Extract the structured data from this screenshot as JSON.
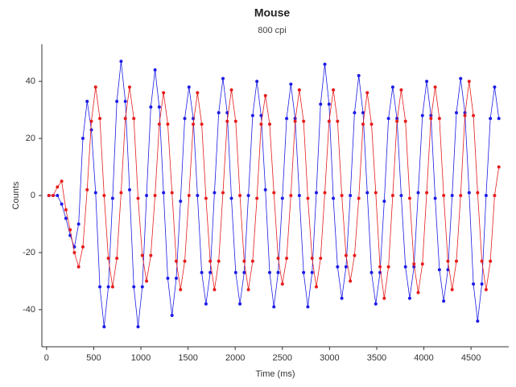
{
  "chart_data": {
    "type": "line",
    "title": "Mouse",
    "subtitle": "800 cpi",
    "x_label": "Time (ms)",
    "y_label": "Counts",
    "xlim": [
      -50,
      4900
    ],
    "ylim": [
      -53,
      53
    ],
    "xticks": [
      0,
      500,
      1000,
      1500,
      2000,
      2500,
      3000,
      3500,
      4000,
      4500
    ],
    "yticks": [
      -40,
      -20,
      0,
      20,
      40
    ],
    "x": [
      25,
      70,
      115,
      160,
      205,
      250,
      295,
      340,
      385,
      430,
      475,
      520,
      565,
      610,
      655,
      700,
      745,
      790,
      835,
      880,
      925,
      970,
      1015,
      1060,
      1105,
      1150,
      1195,
      1240,
      1285,
      1330,
      1375,
      1420,
      1465,
      1510,
      1555,
      1600,
      1645,
      1690,
      1735,
      1780,
      1825,
      1870,
      1915,
      1960,
      2005,
      2050,
      2095,
      2140,
      2185,
      2230,
      2275,
      2320,
      2365,
      2410,
      2455,
      2500,
      2545,
      2590,
      2635,
      2680,
      2725,
      2770,
      2815,
      2860,
      2905,
      2950,
      2995,
      3040,
      3085,
      3130,
      3175,
      3220,
      3265,
      3310,
      3355,
      3400,
      3445,
      3490,
      3535,
      3580,
      3625,
      3670,
      3715,
      3760,
      3805,
      3850,
      3895,
      3940,
      3985,
      4030,
      4075,
      4120,
      4165,
      4210,
      4255,
      4300,
      4345,
      4390,
      4435,
      4480,
      4525,
      4570,
      4615,
      4660,
      4705,
      4750,
      4795
    ],
    "series": [
      {
        "name": "Blue",
        "color": "#1c1ce6",
        "values": [
          0,
          0,
          0,
          -3,
          -8,
          -14,
          -18,
          -10,
          20,
          33,
          23,
          1,
          -32,
          -46,
          -32,
          -1,
          33,
          47,
          33,
          2,
          -32,
          -46,
          -32,
          0,
          31,
          44,
          31,
          1,
          -29,
          -42,
          -29,
          -2,
          27,
          38,
          27,
          0,
          -27,
          -38,
          -27,
          1,
          29,
          41,
          29,
          -1,
          -27,
          -38,
          -27,
          0,
          28,
          40,
          28,
          2,
          -27,
          -39,
          -27,
          -1,
          27,
          39,
          27,
          0,
          -27,
          -39,
          -27,
          1,
          32,
          46,
          32,
          -1,
          -25,
          -36,
          -25,
          0,
          29,
          42,
          29,
          1,
          -27,
          -38,
          -27,
          -2,
          27,
          38,
          27,
          0,
          -25,
          -36,
          -25,
          1,
          28,
          40,
          28,
          -1,
          -26,
          -37,
          -26,
          0,
          29,
          41,
          29,
          1,
          -31,
          -44,
          -31,
          0,
          27,
          38,
          27
        ]
      },
      {
        "name": "Red",
        "color": "#e61c1c",
        "values": [
          0,
          0,
          3,
          5,
          -5,
          -12,
          -20,
          -25,
          -18,
          2,
          26,
          38,
          27,
          0,
          -22,
          -32,
          -22,
          1,
          27,
          38,
          27,
          -1,
          -21,
          -30,
          -21,
          0,
          25,
          36,
          25,
          1,
          -23,
          -33,
          -23,
          0,
          25,
          36,
          25,
          -1,
          -23,
          -33,
          -23,
          1,
          26,
          37,
          26,
          0,
          -23,
          -33,
          -23,
          -1,
          25,
          35,
          25,
          1,
          -22,
          -31,
          -22,
          0,
          26,
          37,
          26,
          -1,
          -22,
          -32,
          -22,
          1,
          26,
          37,
          26,
          0,
          -21,
          -30,
          -21,
          -1,
          25,
          36,
          25,
          1,
          -25,
          -36,
          -25,
          0,
          26,
          37,
          26,
          -1,
          -24,
          -34,
          -24,
          1,
          27,
          38,
          27,
          0,
          -23,
          -33,
          -23,
          0,
          28,
          40,
          28,
          1,
          -23,
          -33,
          -23,
          0,
          10
        ]
      }
    ]
  }
}
